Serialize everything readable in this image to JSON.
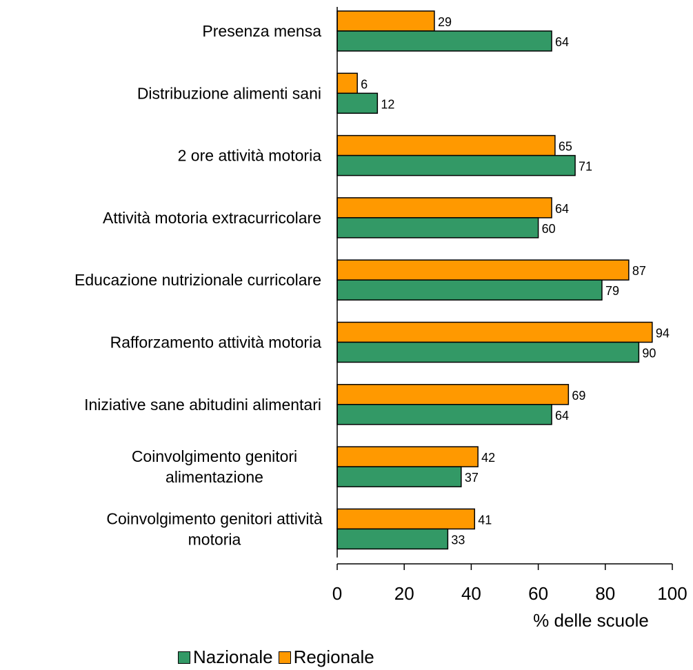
{
  "chart_data": {
    "type": "bar",
    "orientation": "horizontal",
    "categories": [
      [
        "Presenza mensa"
      ],
      [
        "Distribuzione alimenti sani"
      ],
      [
        "2 ore attività motoria"
      ],
      [
        "Attività motoria extracurricolare"
      ],
      [
        "Educazione nutrizionale curricolare"
      ],
      [
        "Rafforzamento attività motoria"
      ],
      [
        "Iniziative sane abitudini alimentari"
      ],
      [
        "Coinvolgimento genitori",
        "alimentazione"
      ],
      [
        "Coinvolgimento genitori attività",
        "motoria"
      ]
    ],
    "series": [
      {
        "name": "Regionale",
        "color": "#ff9900",
        "values": [
          29,
          6,
          65,
          64,
          87,
          94,
          69,
          42,
          41
        ]
      },
      {
        "name": "Nazionale",
        "color": "#339966",
        "values": [
          64,
          12,
          71,
          60,
          79,
          90,
          64,
          37,
          33
        ]
      }
    ],
    "xlabel": "% delle scuole",
    "xlim": [
      0,
      100
    ],
    "xticks": [
      0,
      20,
      40,
      60,
      80,
      100
    ],
    "legend_position": "bottom",
    "legend_order": [
      "Nazionale",
      "Regionale"
    ]
  }
}
